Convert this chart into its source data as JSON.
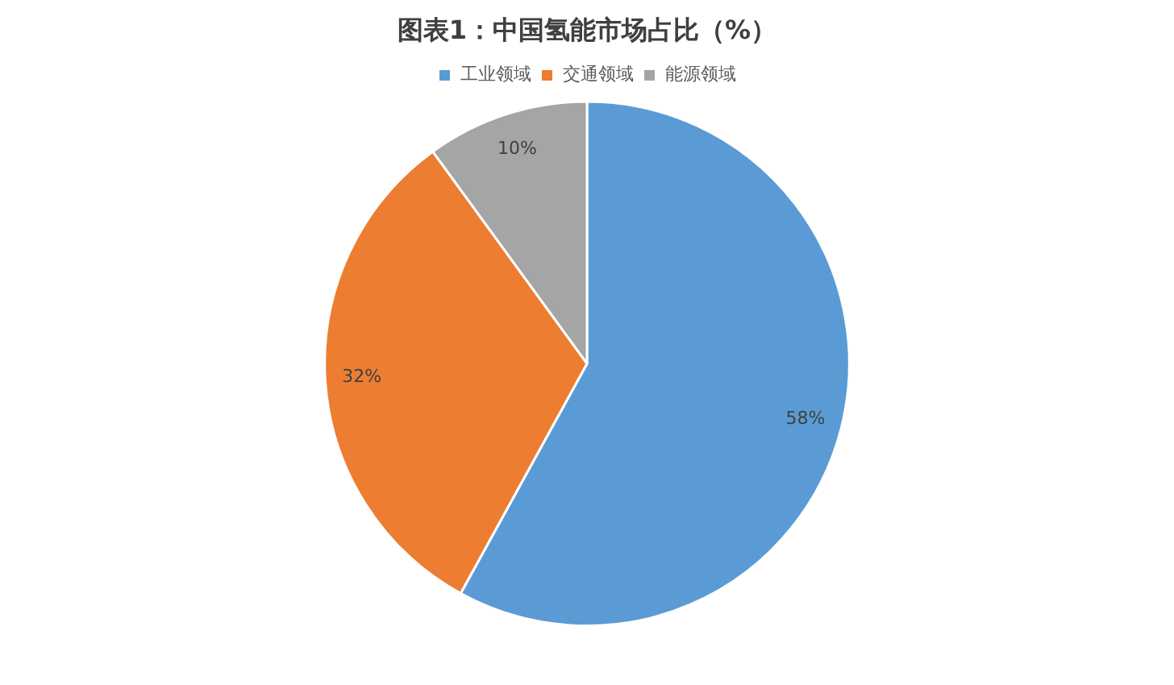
{
  "chart_data": {
    "type": "pie",
    "title": "图表1：中国氢能市场占比（%）",
    "categories": [
      "工业领域",
      "交通领域",
      "能源领域"
    ],
    "values": [
      58,
      32,
      10
    ],
    "colors": [
      "#5b9bd5",
      "#ed7d31",
      "#a5a5a5"
    ],
    "value_labels": [
      "58%",
      "32%",
      "10%"
    ],
    "legend": "top"
  }
}
